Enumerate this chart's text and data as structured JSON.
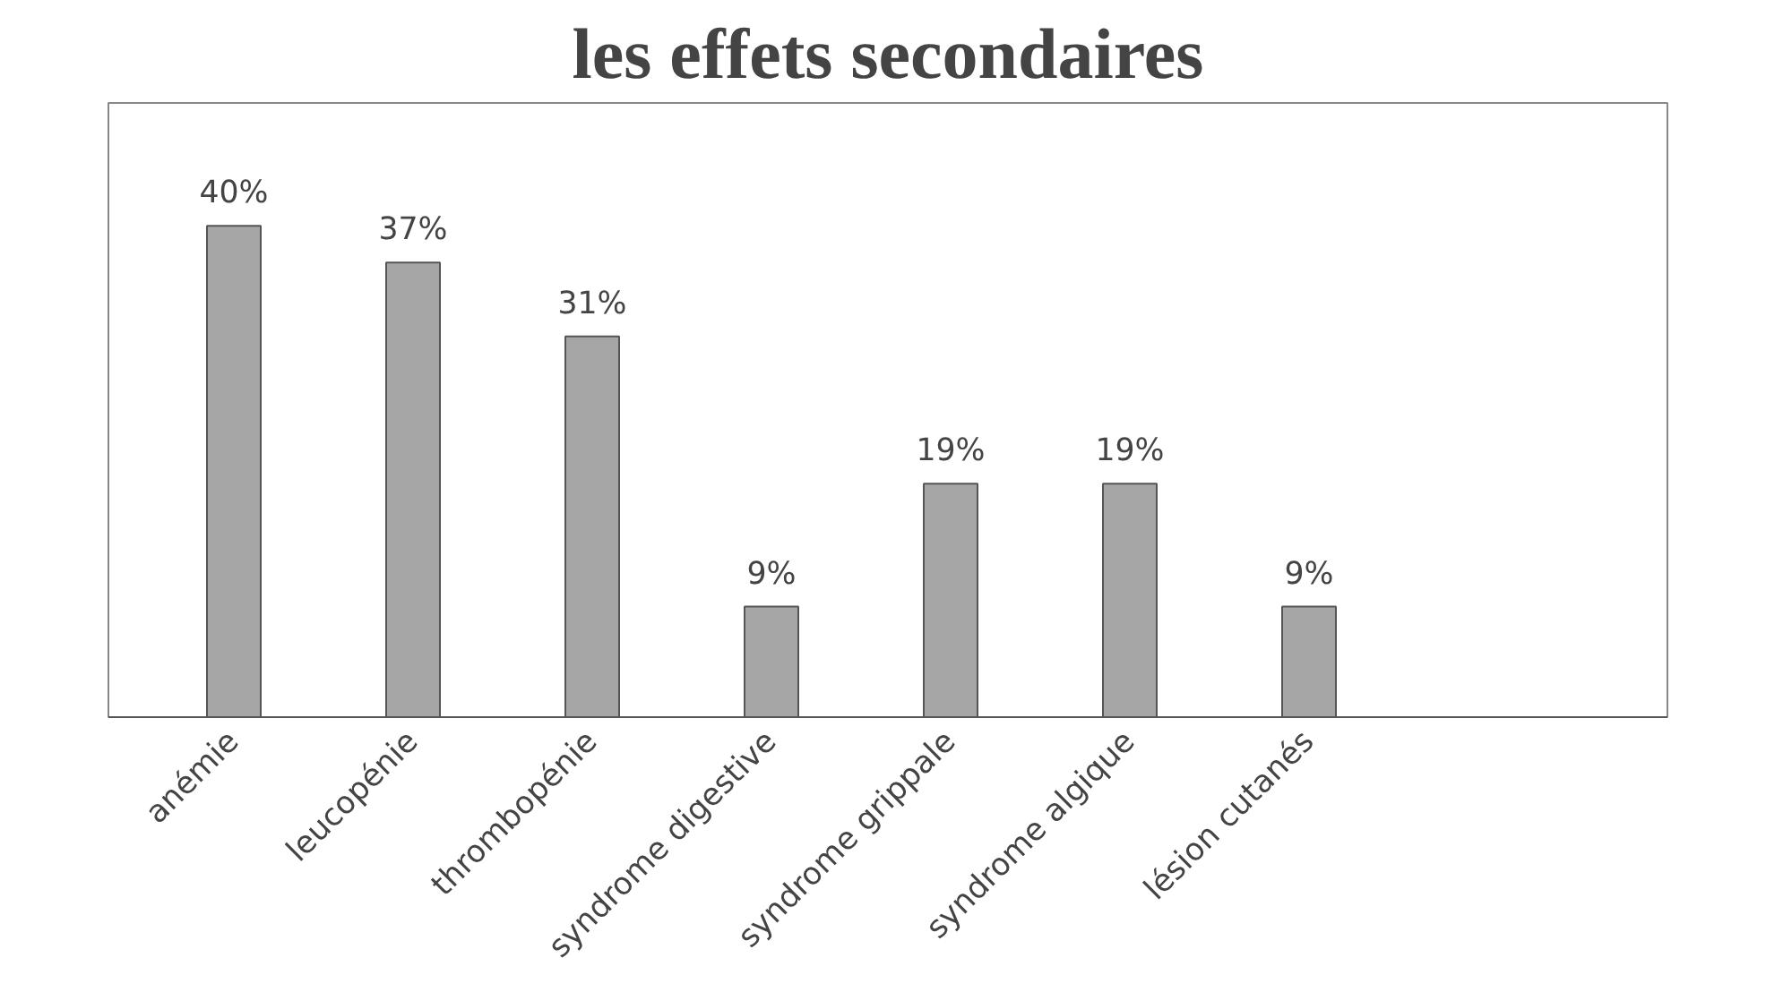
{
  "chart_data": {
    "type": "bar",
    "title": "les effets secondaires",
    "categories": [
      "anémie",
      "leucopénie",
      "thrombopénie",
      "syndrome digestive",
      "syndrome grippale",
      "syndrome algique",
      "lésion cutanés"
    ],
    "values": [
      40,
      37,
      31,
      9,
      19,
      19,
      9
    ],
    "value_labels": [
      "40%",
      "37%",
      "31%",
      "9%",
      "19%",
      "19%",
      "9%"
    ],
    "color": "#a6a6a6",
    "grid": false
  }
}
